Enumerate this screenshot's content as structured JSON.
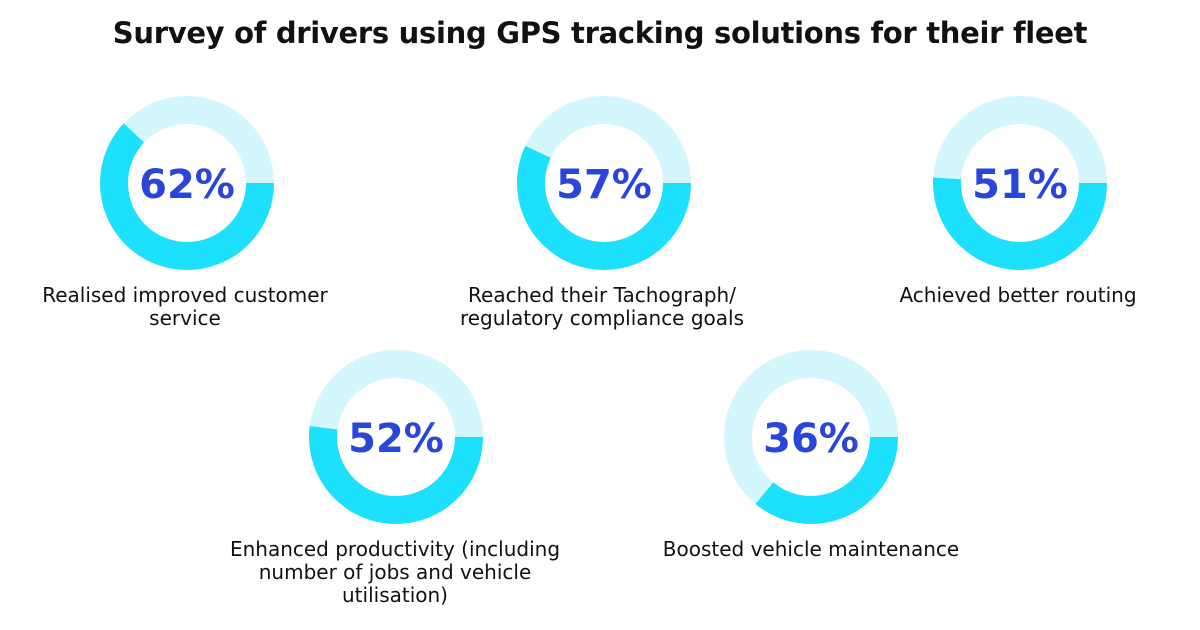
{
  "title": "Survey of drivers using GPS tracking solutions for their fleet",
  "colors": {
    "filled": "#1de0fd",
    "track": "#d3f7fd",
    "percent_text": "#2a45d9",
    "label_text": "#111111"
  },
  "chart_data": {
    "type": "pie",
    "subtype": "donut",
    "title": "Survey of drivers using GPS tracking solutions for their fleet",
    "unit": "%",
    "items": [
      {
        "label": "Realised improved customer service",
        "value": 62,
        "display": "62%"
      },
      {
        "label": "Reached their Tachograph/ regulatory compliance goals",
        "value": 57,
        "display": "57%"
      },
      {
        "label": "Achieved better routing",
        "value": 51,
        "display": "51%"
      },
      {
        "label": "Enhanced productivity (including number of jobs and vehicle utilisation)",
        "value": 52,
        "display": "52%"
      },
      {
        "label": "Boosted vehicle maintenance",
        "value": 36,
        "display": "36%"
      }
    ]
  }
}
